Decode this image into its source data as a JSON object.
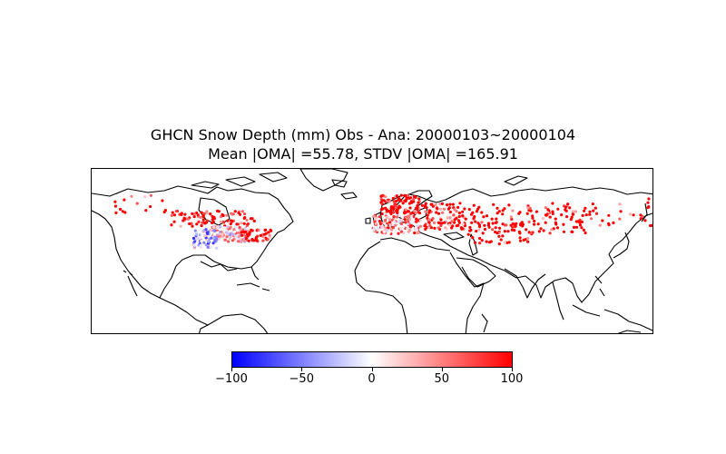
{
  "title": {
    "line1": "GHCN Snow Depth (mm) Obs - Ana: 20000103~20000104",
    "line2": "Mean |OMA| =55.78, STDV |OMA| =165.91"
  },
  "map": {
    "projection": "plate-carree",
    "extent": {
      "lon": [
        -180,
        180
      ],
      "lat": [
        -20,
        87
      ]
    },
    "marker_color_scale": "bwr"
  },
  "colorbar": {
    "min": -100,
    "max": 100,
    "ticks": [
      {
        "value": -100,
        "label": "−100"
      },
      {
        "value": -50,
        "label": "−50"
      },
      {
        "value": 0,
        "label": "0"
      },
      {
        "value": 50,
        "label": "50"
      },
      {
        "value": 100,
        "label": "100"
      }
    ],
    "colors": {
      "low": "#0000ff",
      "mid": "#ffffff",
      "high": "#ff0000"
    }
  },
  "station_clusters": [
    {
      "region": "canada-boreal",
      "lon": [
        -130,
        -75
      ],
      "lat": [
        50,
        60
      ],
      "count": 90,
      "mean": 85
    },
    {
      "region": "alaska-yukon",
      "lon": [
        -165,
        -132
      ],
      "lat": [
        58,
        70
      ],
      "count": 16,
      "mean": 70
    },
    {
      "region": "north-central-us",
      "lon": [
        -105,
        -80
      ],
      "lat": [
        40,
        50
      ],
      "count": 130,
      "mean": 15
    },
    {
      "region": "rocky-mountains",
      "lon": [
        -115,
        -100
      ],
      "lat": [
        36,
        48
      ],
      "count": 70,
      "mean": -25
    },
    {
      "region": "northeast-us",
      "lon": [
        -85,
        -65
      ],
      "lat": [
        40,
        48
      ],
      "count": 50,
      "mean": 70
    },
    {
      "region": "scandinavia",
      "lon": [
        5,
        30
      ],
      "lat": [
        58,
        70
      ],
      "count": 110,
      "mean": 85
    },
    {
      "region": "central-europe",
      "lon": [
        0,
        30
      ],
      "lat": [
        45,
        57
      ],
      "count": 150,
      "mean": 40
    },
    {
      "region": "western-russia",
      "lon": [
        30,
        60
      ],
      "lat": [
        48,
        65
      ],
      "count": 100,
      "mean": 75
    },
    {
      "region": "siberia",
      "lon": [
        60,
        140
      ],
      "lat": [
        45,
        65
      ],
      "count": 150,
      "mean": 85
    },
    {
      "region": "far-east",
      "lon": [
        140,
        180
      ],
      "lat": [
        50,
        68
      ],
      "count": 25,
      "mean": 85
    },
    {
      "region": "central-asia",
      "lon": [
        60,
        100
      ],
      "lat": [
        38,
        48
      ],
      "count": 30,
      "mean": 70
    }
  ]
}
